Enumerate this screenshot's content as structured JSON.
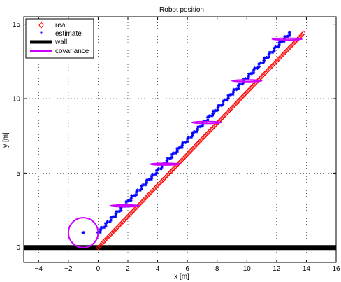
{
  "chart_data": {
    "type": "scatter",
    "title": "Robot position",
    "xlabel": "x [m]",
    "ylabel": "y [m]",
    "xlim": [
      -5,
      16
    ],
    "ylim": [
      -1,
      15.5
    ],
    "x_ticks": [
      -4,
      -2,
      0,
      2,
      4,
      6,
      8,
      10,
      12,
      14,
      16
    ],
    "y_ticks": [
      0,
      5,
      10,
      15
    ],
    "grid": true,
    "legend_position": "top-left",
    "series": [
      {
        "name": "real",
        "marker": "diamond",
        "color": "#ff0000",
        "trajectory_start": {
          "x": 0.0,
          "y": 0.0
        },
        "trajectory_end": {
          "x": 13.8,
          "y": 14.4
        },
        "point_count": 150
      },
      {
        "name": "estimate",
        "marker": "asterisk",
        "color": "#0000ff",
        "initial_point": {
          "x": -1.0,
          "y": 1.0
        },
        "trajectory_start": {
          "x": 0.0,
          "y": 1.0
        },
        "trajectory_end": {
          "x": 12.9,
          "y": 14.4
        },
        "point_count": 140
      },
      {
        "name": "wall",
        "color": "#000000",
        "y": 0,
        "x_range": [
          -5,
          16
        ]
      },
      {
        "name": "covariance",
        "color": "#cc00ff",
        "ellipses": [
          {
            "cx": -1.0,
            "cy": 1.0,
            "rx": 1.0,
            "ry": 1.0
          },
          {
            "cx": 1.8,
            "cy": 2.8,
            "rx": 1.0,
            "ry": 0.06
          },
          {
            "cx": 4.5,
            "cy": 5.6,
            "rx": 1.0,
            "ry": 0.06
          },
          {
            "cx": 7.3,
            "cy": 8.4,
            "rx": 1.0,
            "ry": 0.06
          },
          {
            "cx": 10.0,
            "cy": 11.2,
            "rx": 1.0,
            "ry": 0.06
          },
          {
            "cx": 12.7,
            "cy": 14.0,
            "rx": 1.0,
            "ry": 0.06
          }
        ]
      }
    ]
  }
}
